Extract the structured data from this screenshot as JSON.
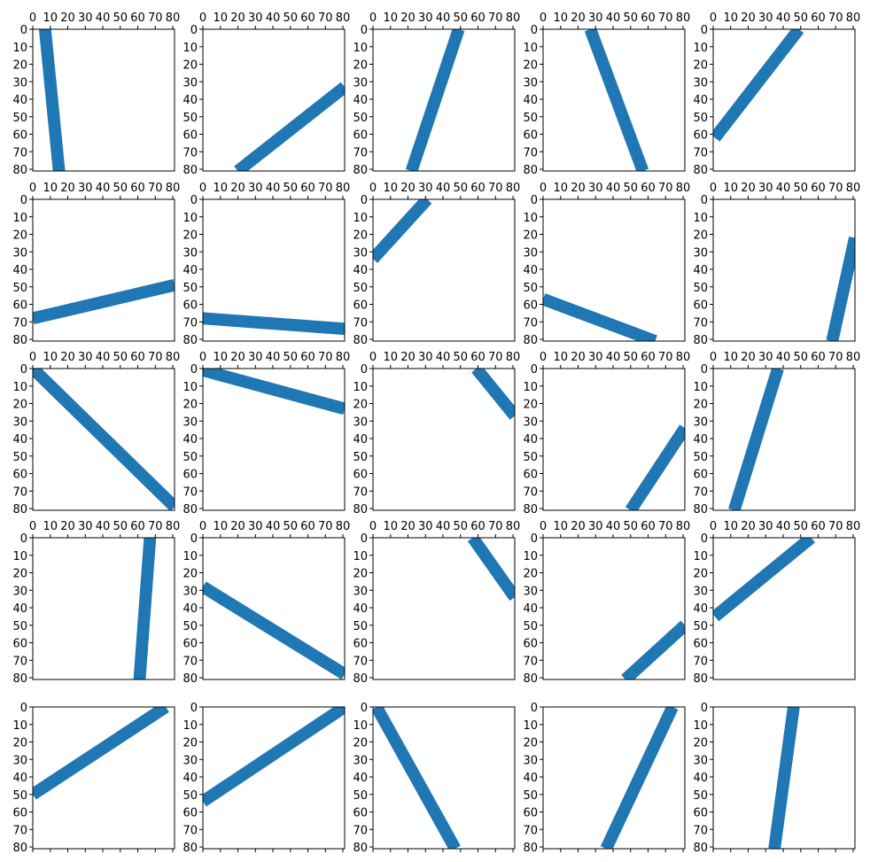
{
  "chart_data": {
    "type": "image_grid",
    "rows": 5,
    "cols": 5,
    "pixel_range": [
      0,
      81
    ],
    "x_ticks": [
      0,
      10,
      20,
      30,
      40,
      50,
      60,
      70,
      80
    ],
    "y_ticks": [
      0,
      10,
      20,
      30,
      40,
      50,
      60,
      70,
      80
    ],
    "stroke_color": "#1f77b4",
    "panels": [
      {
        "p1": [
          7,
          0
        ],
        "p2": [
          15,
          81
        ]
      },
      {
        "p1": [
          20,
          81
        ],
        "p2": [
          81,
          33
        ]
      },
      {
        "p1": [
          22,
          81
        ],
        "p2": [
          49,
          0
        ]
      },
      {
        "p1": [
          27,
          0
        ],
        "p2": [
          57,
          81
        ]
      },
      {
        "p1": [
          1,
          62
        ],
        "p2": [
          49,
          0
        ]
      },
      {
        "p1": [
          0,
          68
        ],
        "p2": [
          81,
          49
        ]
      },
      {
        "p1": [
          0,
          68
        ],
        "p2": [
          81,
          74
        ]
      },
      {
        "p1": [
          0,
          34
        ],
        "p2": [
          31,
          0
        ]
      },
      {
        "p1": [
          0,
          57
        ],
        "p2": [
          64,
          81
        ]
      },
      {
        "p1": [
          68,
          81
        ],
        "p2": [
          81,
          22
        ]
      },
      {
        "p1": [
          0,
          0
        ],
        "p2": [
          81,
          79
        ]
      },
      {
        "p1": [
          0,
          1
        ],
        "p2": [
          81,
          23
        ]
      },
      {
        "p1": [
          59,
          0
        ],
        "p2": [
          81,
          27
        ]
      },
      {
        "p1": [
          50,
          81
        ],
        "p2": [
          81,
          34
        ]
      },
      {
        "p1": [
          12,
          81
        ],
        "p2": [
          37,
          0
        ]
      },
      {
        "p1": [
          67,
          0
        ],
        "p2": [
          61,
          81
        ]
      },
      {
        "p1": [
          0,
          28
        ],
        "p2": [
          81,
          78
        ]
      },
      {
        "p1": [
          57,
          0
        ],
        "p2": [
          81,
          34
        ]
      },
      {
        "p1": [
          47,
          81
        ],
        "p2": [
          81,
          50
        ]
      },
      {
        "p1": [
          1,
          45
        ],
        "p2": [
          56,
          0
        ]
      },
      {
        "p1": [
          0,
          50
        ],
        "p2": [
          76,
          0
        ]
      },
      {
        "p1": [
          0,
          54
        ],
        "p2": [
          81,
          0
        ]
      },
      {
        "p1": [
          2,
          0
        ],
        "p2": [
          47,
          81
        ]
      },
      {
        "p1": [
          36,
          81
        ],
        "p2": [
          74,
          0
        ]
      },
      {
        "p1": [
          35,
          81
        ],
        "p2": [
          46,
          0
        ]
      }
    ]
  }
}
